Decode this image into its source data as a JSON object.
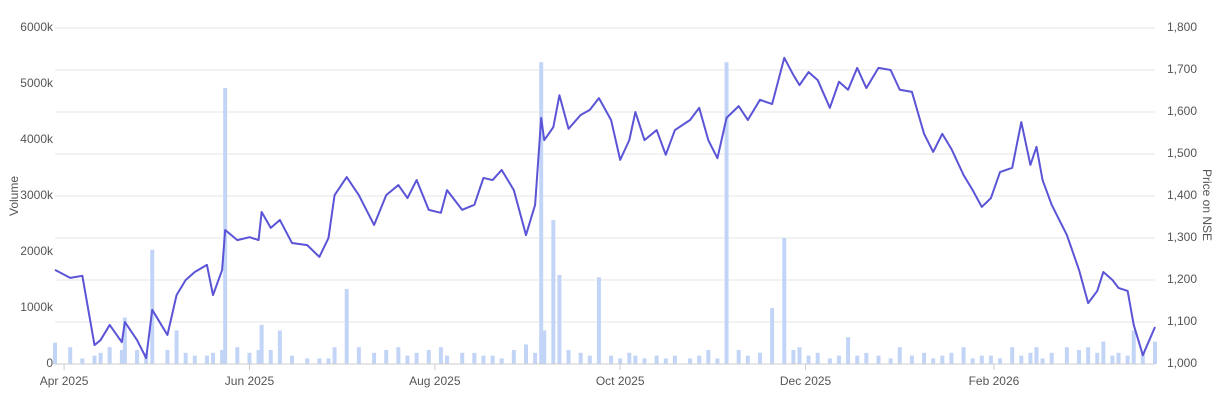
{
  "chart_data": {
    "type": "combo",
    "y_label": "Volume",
    "y2_label": "Price on NSE",
    "x": [
      -3,
      2,
      6,
      10,
      12,
      15,
      19,
      20,
      24,
      27,
      29,
      34,
      37,
      40,
      43,
      47,
      49,
      52,
      53,
      57,
      61,
      64,
      65,
      68,
      71,
      75,
      80,
      84,
      87,
      89,
      93,
      97,
      102,
      106,
      110,
      113,
      116,
      120,
      124,
      126,
      131,
      135,
      138,
      141,
      144,
      148,
      152,
      155,
      157,
      158,
      161,
      163,
      166,
      170,
      173,
      176,
      180,
      183,
      186,
      188,
      191,
      195,
      198,
      201,
      206,
      209,
      212,
      215,
      218,
      222,
      225,
      229,
      233,
      237,
      240,
      242,
      245,
      248,
      252,
      255,
      258,
      261,
      264,
      268,
      272,
      275,
      279,
      283,
      286,
      289,
      292,
      296,
      299,
      302,
      305,
      308,
      312,
      315,
      318,
      320,
      322,
      325,
      330,
      334,
      337,
      340,
      342,
      345,
      347,
      350,
      352,
      355,
      359
    ],
    "xlim": [
      -3,
      359
    ],
    "xticks": [
      {
        "value": 0,
        "label": "Apr 2025"
      },
      {
        "value": 61,
        "label": "Jun 2025"
      },
      {
        "value": 122,
        "label": "Aug 2025"
      },
      {
        "value": 183,
        "label": "Oct 2025"
      },
      {
        "value": 244,
        "label": "Dec 2025"
      },
      {
        "value": 306,
        "label": "Feb 2026"
      }
    ],
    "ylim": [
      0,
      6000
    ],
    "yticks": [
      0,
      {
        "value": 1000,
        "label": "1000k"
      },
      {
        "value": 2000,
        "label": "2000k"
      },
      {
        "value": 3000,
        "label": "3000k"
      },
      {
        "value": 4000,
        "label": "4000k"
      },
      {
        "value": 5000,
        "label": "5000k"
      },
      {
        "value": 6000,
        "label": "6000k"
      }
    ],
    "y2lim": [
      1000,
      1800
    ],
    "y2ticks": [
      {
        "value": 1000,
        "label": "1,000"
      },
      {
        "value": 1100,
        "label": "1,100"
      },
      {
        "value": 1200,
        "label": "1,200"
      },
      {
        "value": 1300,
        "label": "1,300"
      },
      {
        "value": 1400,
        "label": "1,400"
      },
      {
        "value": 1500,
        "label": "1,500"
      },
      {
        "value": 1600,
        "label": "1,600"
      },
      {
        "value": 1700,
        "label": "1,700"
      },
      {
        "value": 1800,
        "label": "1,800"
      }
    ],
    "grid": true,
    "series": [
      {
        "type": "bar",
        "color": "#c3d5f7",
        "values": [
          380,
          300,
          100,
          150,
          200,
          300,
          250,
          830,
          250,
          200,
          2040,
          250,
          600,
          200,
          150,
          150,
          200,
          250,
          4930,
          300,
          200,
          250,
          700,
          250,
          600,
          150,
          100,
          100,
          100,
          300,
          1340,
          300,
          200,
          250,
          300,
          150,
          200,
          250,
          300,
          150,
          200,
          200,
          150,
          150,
          100,
          250,
          350,
          200,
          5390,
          600,
          2570,
          1590,
          250,
          200,
          150,
          1550,
          150,
          100,
          200,
          150,
          100,
          150,
          100,
          150,
          100,
          150,
          250,
          100,
          5390,
          250,
          150,
          200,
          1000,
          2250,
          250,
          300,
          150,
          200,
          100,
          150,
          480,
          150,
          200,
          150,
          100,
          300,
          150,
          200,
          100,
          150,
          200,
          300,
          100,
          150,
          150,
          100,
          300,
          150,
          200,
          300,
          100,
          200,
          300,
          250,
          300,
          200,
          400,
          150,
          200,
          150,
          600,
          200,
          400
        ]
      },
      {
        "type": "line",
        "axis": "y2",
        "color": "#5b54d6",
        "values": [
          1224,
          1205,
          1210,
          1045,
          1057,
          1093,
          1052,
          1100,
          1057,
          1014,
          1129,
          1069,
          1164,
          1200,
          1219,
          1236,
          1164,
          1224,
          1319,
          1295,
          1302,
          1295,
          1362,
          1324,
          1343,
          1288,
          1283,
          1255,
          1300,
          1402,
          1445,
          1402,
          1331,
          1402,
          1426,
          1395,
          1438,
          1367,
          1360,
          1414,
          1367,
          1379,
          1443,
          1438,
          1462,
          1414,
          1307,
          1379,
          1586,
          1533,
          1564,
          1640,
          1560,
          1593,
          1605,
          1633,
          1581,
          1486,
          1533,
          1600,
          1533,
          1557,
          1498,
          1557,
          1581,
          1610,
          1533,
          1490,
          1586,
          1614,
          1581,
          1629,
          1619,
          1729,
          1688,
          1664,
          1695,
          1676,
          1610,
          1672,
          1653,
          1705,
          1657,
          1705,
          1700,
          1653,
          1648,
          1548,
          1505,
          1548,
          1512,
          1450,
          1414,
          1374,
          1395,
          1457,
          1467,
          1576,
          1474,
          1517,
          1438,
          1379,
          1307,
          1224,
          1145,
          1174,
          1219,
          1200,
          1181,
          1174,
          1093,
          1021,
          1088
        ]
      }
    ]
  }
}
